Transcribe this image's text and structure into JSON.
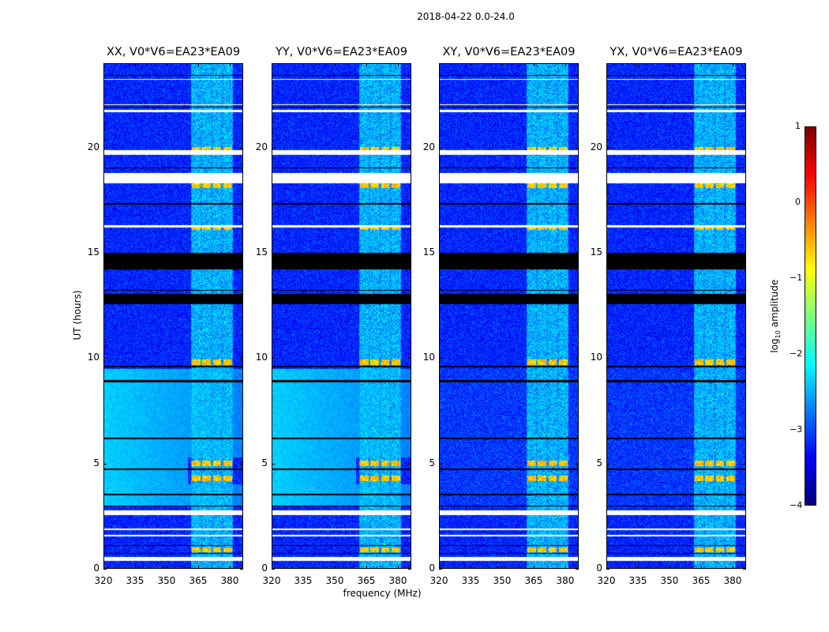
{
  "chart_data": {
    "type": "heatmap",
    "title": "2018-04-22 0.0-24.0",
    "xlabel": "frequency (MHz)",
    "ylabel": "UT (hours)",
    "xlim": [
      320,
      386.4
    ],
    "ylim": [
      0,
      24
    ],
    "xticks": [
      "320",
      "335",
      "350",
      "365",
      "380"
    ],
    "xtick_values": [
      320,
      335,
      350,
      365,
      380
    ],
    "yticks": [
      "0",
      "5",
      "10",
      "15",
      "20"
    ],
    "ytick_values": [
      0,
      5,
      10,
      15,
      20
    ],
    "panels": [
      {
        "title": "XX, V0*V6=EA23*EA09",
        "diffuse_bright": true
      },
      {
        "title": "YY, V0*V6=EA23*EA09",
        "diffuse_bright": true
      },
      {
        "title": "XY, V0*V6=EA23*EA09",
        "diffuse_bright": false
      },
      {
        "title": "YX, V0*V6=EA23*EA09",
        "diffuse_bright": false
      }
    ],
    "colorbar": {
      "label": "log₁₀ amplitude",
      "range": [
        -4,
        1
      ],
      "ticks": [
        "1",
        "0",
        "−1",
        "−2",
        "−3",
        "−4"
      ],
      "tick_values": [
        1,
        0,
        -1,
        -2,
        -3,
        -4
      ],
      "colormap": "jet"
    },
    "background_log_amplitude": -3.2,
    "rfi_subbands_mhz": [
      [
        362,
        366
      ],
      [
        367,
        371
      ],
      [
        372,
        376
      ],
      [
        377,
        381
      ]
    ],
    "rfi_log_amplitude": -2.0,
    "rfi_hot_times_hours": [
      0.9,
      4.3,
      5.0,
      9.8,
      16.2,
      18.2,
      19.9
    ],
    "flagged_hours": [
      [
        0.38,
        0.55
      ],
      [
        1.55,
        1.62
      ],
      [
        1.85,
        1.92
      ],
      [
        2.55,
        2.78
      ],
      [
        16.2,
        16.32
      ],
      [
        18.3,
        18.8
      ],
      [
        19.65,
        19.88
      ],
      [
        21.68,
        21.78
      ],
      [
        22.0,
        22.05
      ],
      [
        23.2,
        23.25
      ]
    ],
    "dropout_hours": [
      [
        0.7,
        0.75
      ],
      [
        1.08,
        1.13
      ],
      [
        2.95,
        3.0
      ],
      [
        3.5,
        3.55
      ],
      [
        4.7,
        4.78
      ],
      [
        6.15,
        6.22
      ],
      [
        8.85,
        8.95
      ],
      [
        9.55,
        9.62
      ],
      [
        12.55,
        13.05
      ],
      [
        13.2,
        13.25
      ],
      [
        14.2,
        15.0
      ],
      [
        17.3,
        17.38
      ],
      [
        19.0,
        19.05
      ],
      [
        21.9,
        21.95
      ],
      [
        23.4,
        23.45
      ]
    ]
  }
}
